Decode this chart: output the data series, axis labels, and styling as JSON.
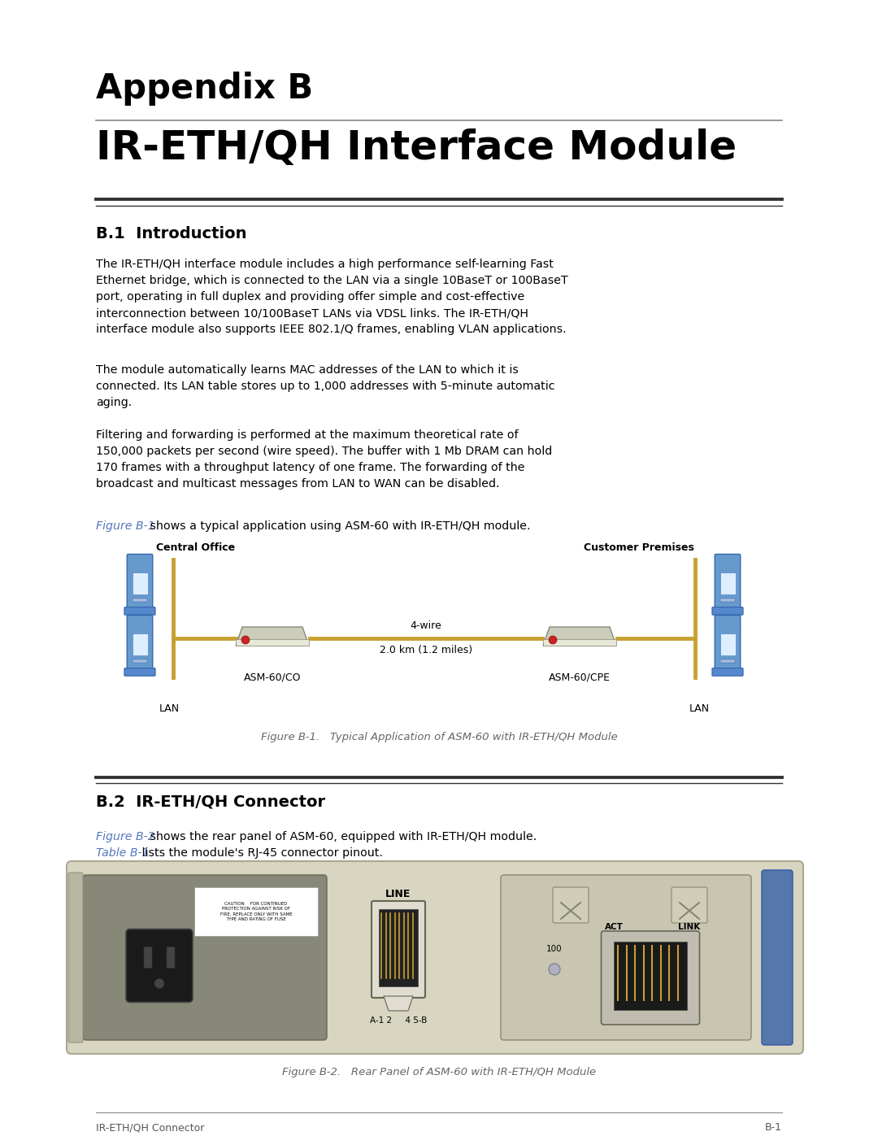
{
  "page_bg": "#ffffff",
  "title_line1": "Appendix B",
  "title_line2": "IR-ETH/QH Interface Module",
  "section1_title": "B.1  Introduction",
  "section1_para1": "The IR-ETH/QH interface module includes a high performance self-learning Fast\nEthernet bridge, which is connected to the LAN via a single 10BaseT or 100BaseT\nport, operating in full duplex and providing offer simple and cost-effective\ninterconnection between 10/100BaseT LANs via VDSL links. The IR-ETH/QH\ninterface module also supports IEEE 802.1/Q frames, enabling VLAN applications.",
  "section1_para2": "The module automatically learns MAC addresses of the LAN to which it is\nconnected. Its LAN table stores up to 1,000 addresses with 5-minute automatic\naging.",
  "section1_para3": "Filtering and forwarding is performed at the maximum theoretical rate of\n150,000 packets per second (wire speed). The buffer with 1 Mb DRAM can hold\n170 frames with a throughput latency of one frame. The forwarding of the\nbroadcast and multicast messages from LAN to WAN can be disabled.",
  "section1_fig_ref": "Figure B-1",
  "section1_fig_text": " shows a typical application using ASM-60 with IR-ETH/QH module.",
  "fig1_caption": "Figure B-1.   Typical Application of ASM-60 with IR-ETH/QH Module",
  "fig1_label_left": "Central Office",
  "fig1_label_right": "Customer Premises",
  "fig1_label_co": "ASM-60/CO",
  "fig1_label_cpe": "ASM-60/CPE",
  "fig1_label_lan_left": "LAN",
  "fig1_label_lan_right": "LAN",
  "fig1_wire_label": "4-wire",
  "fig1_dist_label": "2.0 km (1.2 miles)",
  "section2_title": "B.2  IR-ETH/QH Connector",
  "section2_ref1": "Figure B-2",
  "section2_ref1_text": " shows the rear panel of ASM-60, equipped with IR-ETH/QH module.",
  "section2_ref2": "Table B-1",
  "section2_ref2_text": " lists the module's RJ-45 connector pinout.",
  "fig2_caption": "Figure B-2.   Rear Panel of ASM-60 with IR-ETH/QH Module",
  "footer_left": "IR-ETH/QH Connector",
  "footer_right": "B-1",
  "link_color": "#5577bb",
  "text_color": "#000000",
  "heading_color": "#000000",
  "fig_text_color": "#666666",
  "lm": 118,
  "rm": 962
}
